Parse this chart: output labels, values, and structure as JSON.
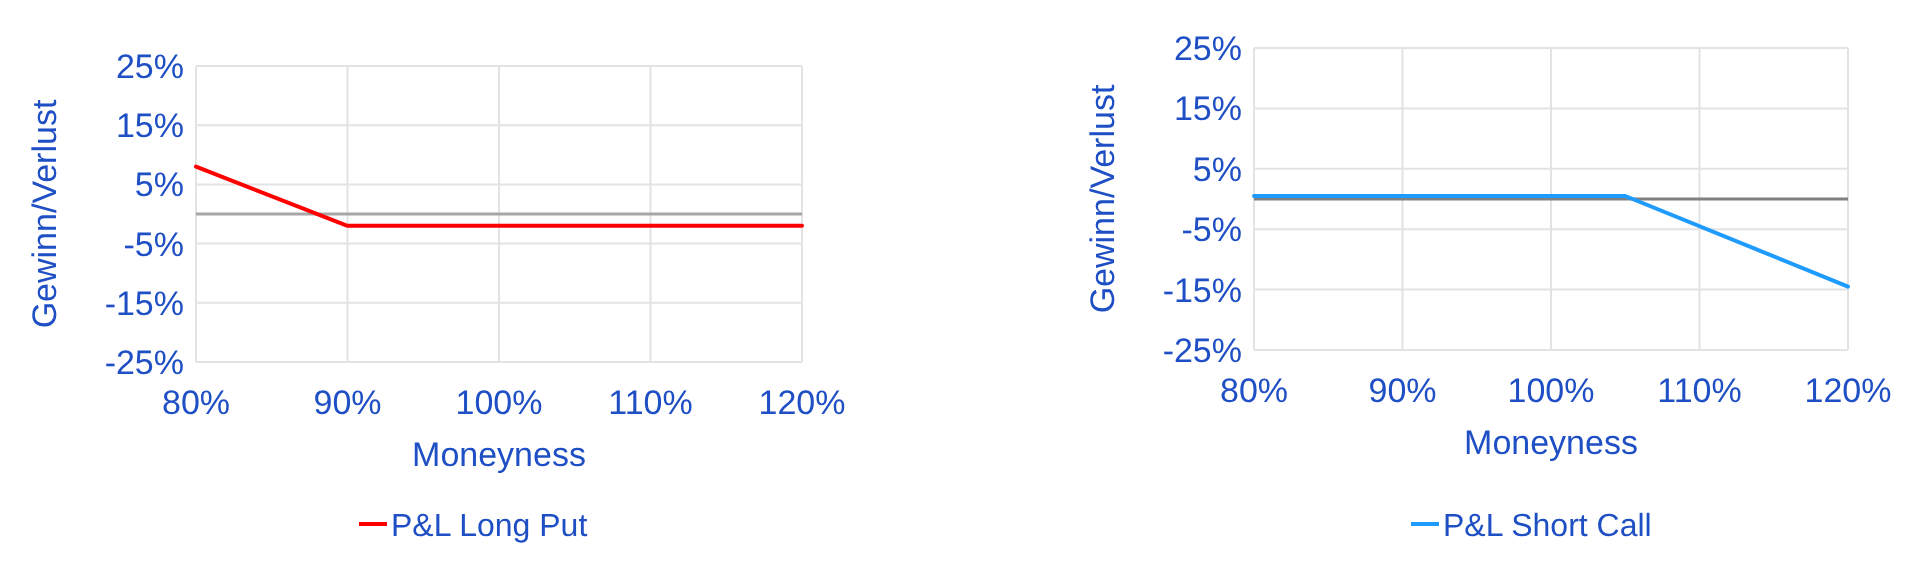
{
  "chart_data": [
    {
      "type": "line",
      "xlabel": "Moneyness",
      "ylabel": "Gewinn/Verlust",
      "x": [
        80,
        90,
        120
      ],
      "series": [
        {
          "name": "P&L Long Put",
          "color": "#ff0000",
          "values": [
            8,
            -2,
            -2
          ]
        }
      ],
      "xlim": [
        80,
        120
      ],
      "xticks": [
        {
          "value": 80,
          "label": "80%"
        },
        {
          "value": 90,
          "label": "90%"
        },
        {
          "value": 100,
          "label": "100%"
        },
        {
          "value": 110,
          "label": "110%"
        },
        {
          "value": 120,
          "label": "120%"
        }
      ],
      "ylim": [
        -25,
        25
      ],
      "yticks": [
        {
          "value": -25,
          "label": "-25%"
        },
        {
          "value": -15,
          "label": "-15%"
        },
        {
          "value": -5,
          "label": "-5%"
        },
        {
          "value": 5,
          "label": "5%"
        },
        {
          "value": 15,
          "label": "15%"
        },
        {
          "value": 25,
          "label": "25%"
        }
      ],
      "ref_lines": [
        {
          "axis": "y",
          "value": 0,
          "color": "#a6a6a6"
        }
      ],
      "grid": true,
      "legend": "bottom",
      "marker": "none",
      "line_style": "solid"
    },
    {
      "type": "line",
      "xlabel": "Moneyness",
      "ylabel": "Gewinn/Verlust",
      "x": [
        80,
        105,
        120
      ],
      "series": [
        {
          "name": "P&L Short Call",
          "color": "#1e9bff",
          "values": [
            0.5,
            0.5,
            -14.5
          ]
        }
      ],
      "xlim": [
        80,
        120
      ],
      "xticks": [
        {
          "value": 80,
          "label": "80%"
        },
        {
          "value": 90,
          "label": "90%"
        },
        {
          "value": 100,
          "label": "100%"
        },
        {
          "value": 110,
          "label": "110%"
        },
        {
          "value": 120,
          "label": "120%"
        }
      ],
      "ylim": [
        -25,
        25
      ],
      "yticks": [
        {
          "value": -25,
          "label": "-25%"
        },
        {
          "value": -15,
          "label": "-15%"
        },
        {
          "value": -5,
          "label": "-5%"
        },
        {
          "value": 5,
          "label": "5%"
        },
        {
          "value": 15,
          "label": "15%"
        },
        {
          "value": 25,
          "label": "25%"
        }
      ],
      "ref_lines": [
        {
          "axis": "y",
          "value": 0,
          "color": "#808080"
        }
      ],
      "grid": true,
      "legend": "bottom",
      "marker": "none",
      "line_style": "solid"
    }
  ]
}
